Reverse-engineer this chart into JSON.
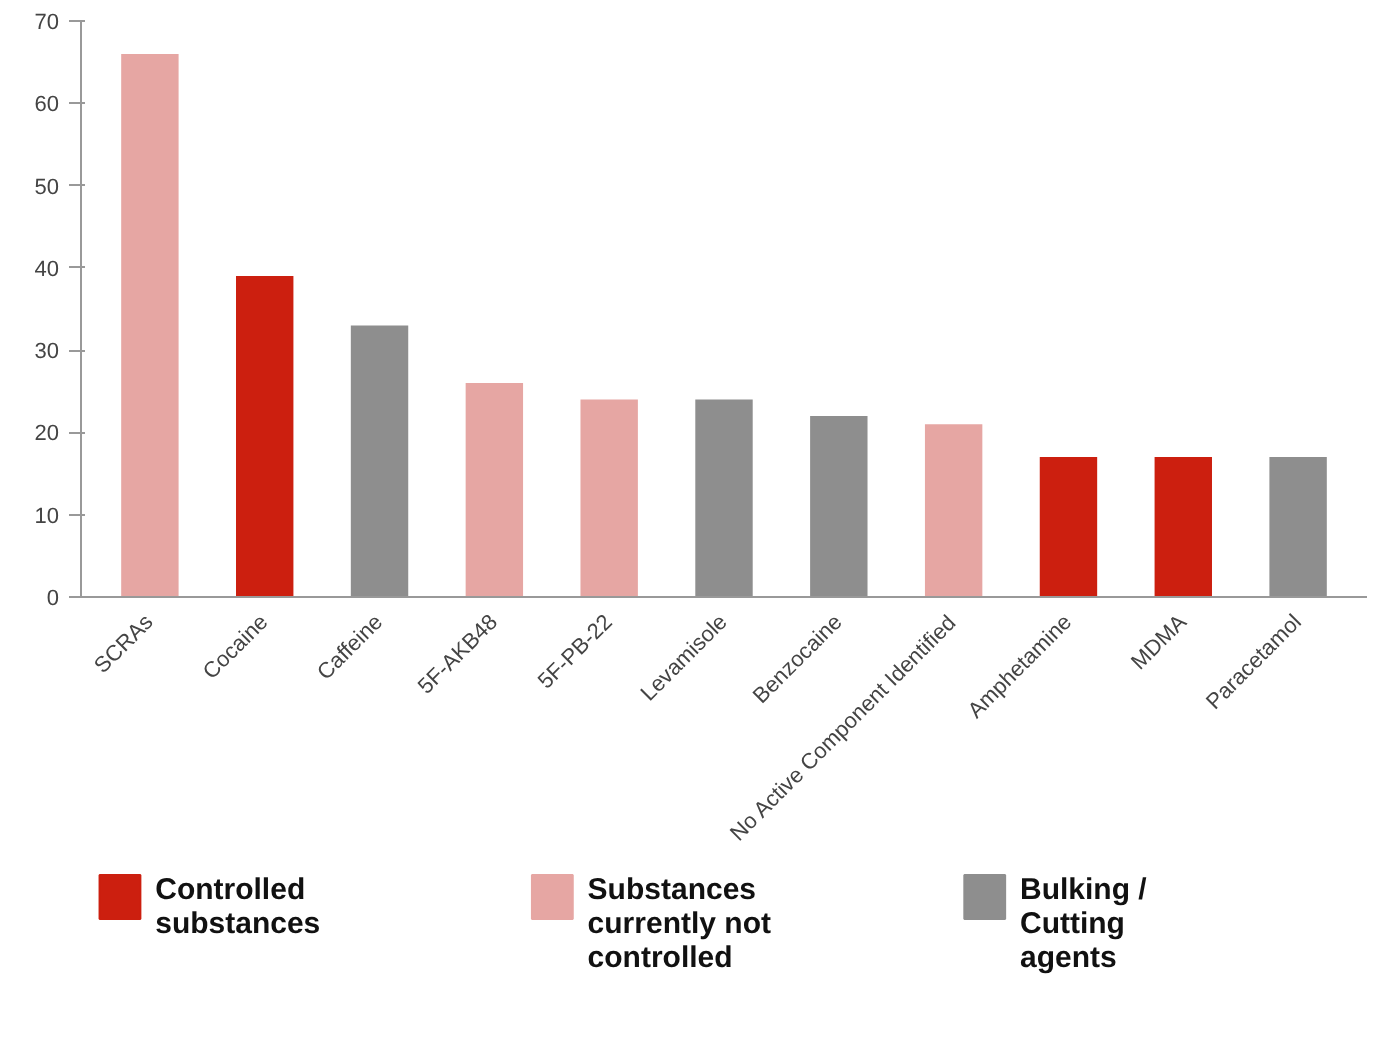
{
  "chart_data": {
    "type": "bar",
    "categories": [
      "SCRAs",
      "Cocaine",
      "Caffeine",
      "5F-AKB48",
      "5F-PB-22",
      "Levamisole",
      "Benzocaine",
      "No Active Component Identified",
      "Amphetamine",
      "MDMA",
      "Paracetamol"
    ],
    "series": [
      {
        "name": "Controlled substances",
        "color": "#cc1f0f",
        "values": [
          null,
          39,
          null,
          null,
          null,
          null,
          null,
          null,
          17,
          17,
          null
        ]
      },
      {
        "name": "Substances currently not controlled",
        "color": "#e6a6a3",
        "values": [
          66,
          null,
          null,
          26,
          24,
          null,
          null,
          21,
          null,
          null,
          null
        ]
      },
      {
        "name": "Bulking / Cutting agents",
        "color": "#8e8e8e",
        "values": [
          null,
          null,
          33,
          null,
          null,
          24,
          22,
          null,
          null,
          null,
          17
        ]
      }
    ],
    "ylim": [
      0,
      70
    ],
    "yticks": [
      0,
      10,
      20,
      30,
      40,
      50,
      60,
      70
    ],
    "grid": false,
    "legend": "bottom"
  }
}
